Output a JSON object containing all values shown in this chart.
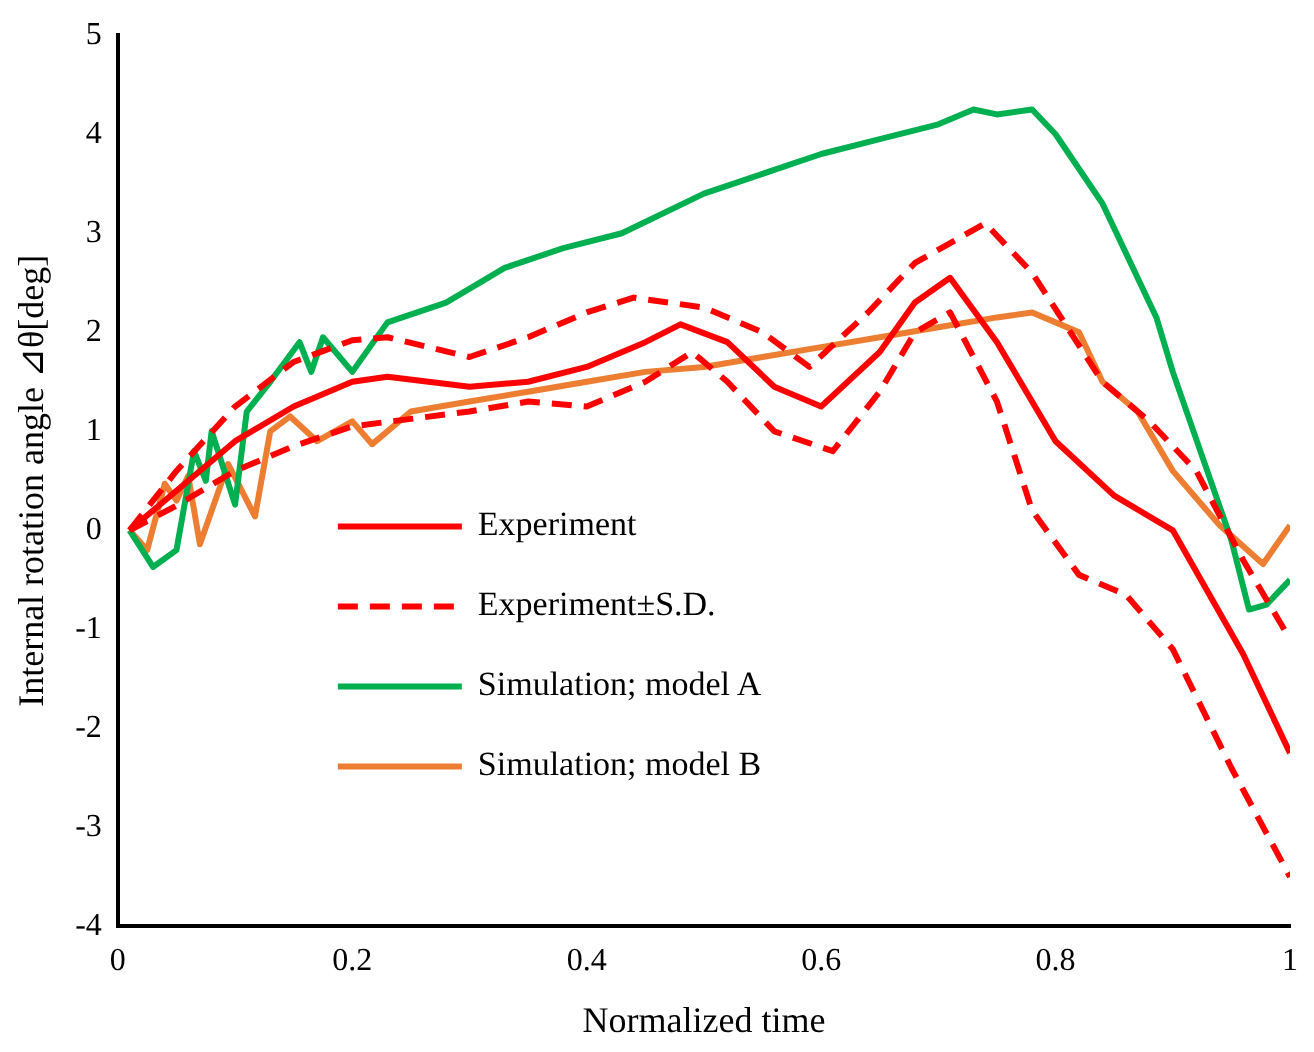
{
  "chart_data": {
    "type": "line",
    "xlabel": "Normalized time",
    "ylabel": "Internal rotation angle ⊿θ[deg]",
    "xlim": [
      0,
      1
    ],
    "xticks": [
      0,
      0.2,
      0.4,
      0.6,
      0.8,
      1
    ],
    "ylim": [
      -4,
      5
    ],
    "yticks": [
      -4,
      -3,
      -2,
      -1,
      0,
      1,
      2,
      3,
      4,
      5
    ],
    "grid": false,
    "legend": "bottom",
    "marker": "none",
    "series": [
      {
        "name": "Experiment",
        "color": "#ff0000",
        "line_style": "solid",
        "x": [
          0.01,
          0.05,
          0.1,
          0.15,
          0.2,
          0.23,
          0.3,
          0.35,
          0.4,
          0.45,
          0.48,
          0.52,
          0.56,
          0.6,
          0.65,
          0.68,
          0.71,
          0.75,
          0.8,
          0.85,
          0.9,
          0.96,
          1.0
        ],
        "values": [
          0,
          0.4,
          0.9,
          1.25,
          1.5,
          1.55,
          1.45,
          1.5,
          1.65,
          1.9,
          2.08,
          1.9,
          1.45,
          1.25,
          1.8,
          2.3,
          2.55,
          1.9,
          0.9,
          0.35,
          0,
          -1.25,
          -2.25
        ]
      },
      {
        "name": "Experiment±S.D.",
        "color": "#ff0000",
        "line_style": "dashed",
        "x": [
          0.01,
          0.05,
          0.1,
          0.15,
          0.2,
          0.23,
          0.3,
          0.35,
          0.4,
          0.44,
          0.5,
          0.55,
          0.59,
          0.64,
          0.68,
          0.74,
          0.78,
          0.84,
          0.88,
          0.92,
          0.96,
          1.0
        ],
        "values": [
          0,
          0.6,
          1.25,
          1.7,
          1.92,
          1.95,
          1.75,
          1.95,
          2.2,
          2.35,
          2.25,
          2.0,
          1.65,
          2.2,
          2.7,
          3.1,
          2.6,
          1.5,
          1.1,
          0.6,
          -0.3,
          -1.1
        ]
      },
      {
        "color": "#ff0000",
        "line_style": "dashed",
        "x": [
          0.01,
          0.05,
          0.1,
          0.15,
          0.2,
          0.3,
          0.35,
          0.4,
          0.45,
          0.49,
          0.52,
          0.56,
          0.61,
          0.65,
          0.68,
          0.71,
          0.75,
          0.78,
          0.82,
          0.86,
          0.9,
          0.95,
          1.0
        ],
        "values": [
          0,
          0.25,
          0.6,
          0.85,
          1.05,
          1.2,
          1.3,
          1.25,
          1.5,
          1.8,
          1.5,
          1.0,
          0.8,
          1.4,
          2.0,
          2.2,
          1.3,
          0.2,
          -0.45,
          -0.65,
          -1.2,
          -2.4,
          -3.5
        ]
      },
      {
        "name": "Simulation; model A",
        "color": "#00b050",
        "line_style": "solid",
        "x": [
          0.01,
          0.03,
          0.05,
          0.065,
          0.075,
          0.08,
          0.1,
          0.11,
          0.13,
          0.155,
          0.165,
          0.175,
          0.2,
          0.23,
          0.28,
          0.33,
          0.38,
          0.43,
          0.5,
          0.55,
          0.6,
          0.65,
          0.7,
          0.73,
          0.75,
          0.78,
          0.8,
          0.84,
          0.886,
          0.9,
          0.95,
          0.965,
          0.98,
          1.0
        ],
        "values": [
          0,
          -0.37,
          -0.2,
          0.8,
          0.5,
          1.0,
          0.26,
          1.2,
          1.5,
          1.9,
          1.6,
          1.95,
          1.6,
          2.1,
          2.3,
          2.65,
          2.85,
          3.0,
          3.4,
          3.6,
          3.8,
          3.95,
          4.1,
          4.25,
          4.2,
          4.25,
          4.0,
          3.3,
          2.15,
          1.6,
          -0.1,
          -0.8,
          -0.75,
          -0.5
        ]
      },
      {
        "name": "Simulation; model B",
        "color": "#ed7d31",
        "line_style": "solid",
        "x": [
          0.01,
          0.025,
          0.04,
          0.05,
          0.06,
          0.07,
          0.094,
          0.117,
          0.13,
          0.147,
          0.17,
          0.2,
          0.217,
          0.25,
          0.3,
          0.35,
          0.4,
          0.45,
          0.5,
          0.55,
          0.6,
          0.65,
          0.7,
          0.75,
          0.78,
          0.8,
          0.82,
          0.84,
          0.87,
          0.9,
          0.94,
          0.977,
          1.0
        ],
        "values": [
          0,
          -0.2,
          0.47,
          0.3,
          0.55,
          -0.14,
          0.67,
          0.14,
          1.0,
          1.15,
          0.9,
          1.1,
          0.87,
          1.2,
          1.3,
          1.4,
          1.5,
          1.6,
          1.65,
          1.75,
          1.85,
          1.95,
          2.05,
          2.15,
          2.2,
          2.1,
          2.0,
          1.5,
          1.2,
          0.6,
          0.05,
          -0.34,
          0.05
        ]
      }
    ]
  }
}
